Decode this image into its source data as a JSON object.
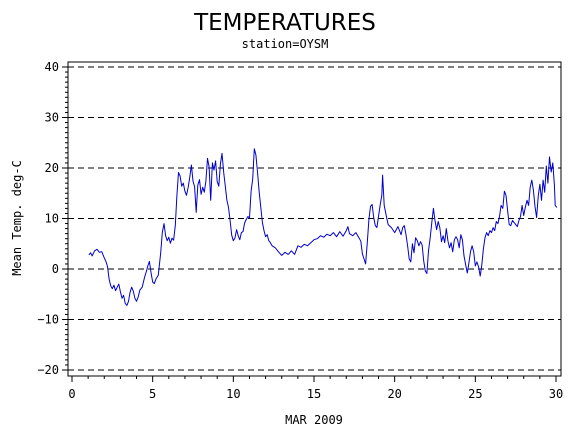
{
  "chart_data": {
    "type": "line",
    "title": "TEMPERATURES",
    "subtitle": "station=OYSM",
    "xlabel": "MAR 2009",
    "ylabel": "Mean Temp. deg-C",
    "xlim": [
      0,
      30
    ],
    "ylim": [
      -20,
      40
    ],
    "x_ticks": [
      0,
      5,
      10,
      15,
      20,
      25,
      30
    ],
    "y_ticks": [
      -20,
      -10,
      0,
      10,
      20,
      30,
      40
    ],
    "grid": "horizontal dashed",
    "series": [
      {
        "color": "#0000cc",
        "points": [
          [
            1.05,
            2.8
          ],
          [
            1.15,
            3.2
          ],
          [
            1.25,
            2.6
          ],
          [
            1.4,
            3.6
          ],
          [
            1.55,
            3.9
          ],
          [
            1.7,
            3.3
          ],
          [
            1.85,
            3.4
          ],
          [
            2.0,
            2.2
          ],
          [
            2.1,
            1.5
          ],
          [
            2.2,
            0.5
          ],
          [
            2.3,
            -2.0
          ],
          [
            2.4,
            -3.3
          ],
          [
            2.5,
            -3.9
          ],
          [
            2.6,
            -3.2
          ],
          [
            2.7,
            -4.3
          ],
          [
            2.8,
            -3.6
          ],
          [
            2.9,
            -3.0
          ],
          [
            3.0,
            -4.5
          ],
          [
            3.1,
            -5.8
          ],
          [
            3.2,
            -5.2
          ],
          [
            3.3,
            -6.8
          ],
          [
            3.4,
            -7.2
          ],
          [
            3.5,
            -6.4
          ],
          [
            3.6,
            -4.6
          ],
          [
            3.7,
            -3.6
          ],
          [
            3.8,
            -4.4
          ],
          [
            3.9,
            -5.8
          ],
          [
            4.0,
            -6.4
          ],
          [
            4.1,
            -5.6
          ],
          [
            4.2,
            -4.2
          ],
          [
            4.35,
            -3.6
          ],
          [
            4.5,
            -1.6
          ],
          [
            4.6,
            -0.6
          ],
          [
            4.7,
            0.6
          ],
          [
            4.8,
            1.5
          ],
          [
            4.9,
            -0.8
          ],
          [
            5.0,
            -2.6
          ],
          [
            5.1,
            -2.9
          ],
          [
            5.2,
            -2.0
          ],
          [
            5.35,
            -1.2
          ],
          [
            5.5,
            3.2
          ],
          [
            5.6,
            7.2
          ],
          [
            5.7,
            9.0
          ],
          [
            5.8,
            6.6
          ],
          [
            5.9,
            5.6
          ],
          [
            6.0,
            6.3
          ],
          [
            6.1,
            5.1
          ],
          [
            6.2,
            6.1
          ],
          [
            6.3,
            5.7
          ],
          [
            6.4,
            8.6
          ],
          [
            6.5,
            14.6
          ],
          [
            6.6,
            19.1
          ],
          [
            6.7,
            18.4
          ],
          [
            6.8,
            16.4
          ],
          [
            6.9,
            17.0
          ],
          [
            7.0,
            15.4
          ],
          [
            7.1,
            14.6
          ],
          [
            7.2,
            16.2
          ],
          [
            7.3,
            18.2
          ],
          [
            7.4,
            20.6
          ],
          [
            7.5,
            17.4
          ],
          [
            7.6,
            16.3
          ],
          [
            7.7,
            11.2
          ],
          [
            7.8,
            16.6
          ],
          [
            7.9,
            17.7
          ],
          [
            8.0,
            14.8
          ],
          [
            8.1,
            16.2
          ],
          [
            8.2,
            15.2
          ],
          [
            8.3,
            17.4
          ],
          [
            8.4,
            21.9
          ],
          [
            8.5,
            20.2
          ],
          [
            8.6,
            13.6
          ],
          [
            8.7,
            21.0
          ],
          [
            8.8,
            19.6
          ],
          [
            8.9,
            21.4
          ],
          [
            9.0,
            17.3
          ],
          [
            9.1,
            16.4
          ],
          [
            9.2,
            20.8
          ],
          [
            9.3,
            22.9
          ],
          [
            9.4,
            19.1
          ],
          [
            9.5,
            16.4
          ],
          [
            9.6,
            13.6
          ],
          [
            9.7,
            12.2
          ],
          [
            9.8,
            9.6
          ],
          [
            9.9,
            6.7
          ],
          [
            10.0,
            5.6
          ],
          [
            10.1,
            6.1
          ],
          [
            10.2,
            7.8
          ],
          [
            10.3,
            6.6
          ],
          [
            10.4,
            5.8
          ],
          [
            10.5,
            7.2
          ],
          [
            10.6,
            7.4
          ],
          [
            10.7,
            9.1
          ],
          [
            10.8,
            9.8
          ],
          [
            10.9,
            10.4
          ],
          [
            11.0,
            10.1
          ],
          [
            11.1,
            15.4
          ],
          [
            11.2,
            17.8
          ],
          [
            11.3,
            23.8
          ],
          [
            11.4,
            22.6
          ],
          [
            11.5,
            19.2
          ],
          [
            11.6,
            15.4
          ],
          [
            11.7,
            12.2
          ],
          [
            11.8,
            9.2
          ],
          [
            11.9,
            7.6
          ],
          [
            12.0,
            6.4
          ],
          [
            12.1,
            6.8
          ],
          [
            12.2,
            5.6
          ],
          [
            12.3,
            5.2
          ],
          [
            12.4,
            4.6
          ],
          [
            12.6,
            4.2
          ],
          [
            12.8,
            3.4
          ],
          [
            13.0,
            2.7
          ],
          [
            13.2,
            3.3
          ],
          [
            13.4,
            2.9
          ],
          [
            13.6,
            3.6
          ],
          [
            13.8,
            2.9
          ],
          [
            14.0,
            4.6
          ],
          [
            14.2,
            4.3
          ],
          [
            14.4,
            4.9
          ],
          [
            14.6,
            4.6
          ],
          [
            14.8,
            5.2
          ],
          [
            15.0,
            5.8
          ],
          [
            15.2,
            6.0
          ],
          [
            15.4,
            6.6
          ],
          [
            15.6,
            6.3
          ],
          [
            15.8,
            6.9
          ],
          [
            16.0,
            6.6
          ],
          [
            16.2,
            7.2
          ],
          [
            16.4,
            6.4
          ],
          [
            16.6,
            7.4
          ],
          [
            16.8,
            6.5
          ],
          [
            17.0,
            7.6
          ],
          [
            17.1,
            8.4
          ],
          [
            17.2,
            7.0
          ],
          [
            17.4,
            6.6
          ],
          [
            17.6,
            7.2
          ],
          [
            17.8,
            6.1
          ],
          [
            17.9,
            5.5
          ],
          [
            18.0,
            3.0
          ],
          [
            18.1,
            2.0
          ],
          [
            18.2,
            1.0
          ],
          [
            18.3,
            5.0
          ],
          [
            18.4,
            9.8
          ],
          [
            18.5,
            12.4
          ],
          [
            18.6,
            12.8
          ],
          [
            18.7,
            10.2
          ],
          [
            18.8,
            8.6
          ],
          [
            18.9,
            8.2
          ],
          [
            19.0,
            10.4
          ],
          [
            19.1,
            12.6
          ],
          [
            19.2,
            14.6
          ],
          [
            19.25,
            18.6
          ],
          [
            19.35,
            12.6
          ],
          [
            19.5,
            10.2
          ],
          [
            19.6,
            8.8
          ],
          [
            19.8,
            8.2
          ],
          [
            20.0,
            7.2
          ],
          [
            20.2,
            8.4
          ],
          [
            20.4,
            6.8
          ],
          [
            20.5,
            8.2
          ],
          [
            20.6,
            8.6
          ],
          [
            20.7,
            6.8
          ],
          [
            20.8,
            4.6
          ],
          [
            20.9,
            2.0
          ],
          [
            21.0,
            1.4
          ],
          [
            21.1,
            5.0
          ],
          [
            21.2,
            3.2
          ],
          [
            21.3,
            6.2
          ],
          [
            21.4,
            5.6
          ],
          [
            21.5,
            4.6
          ],
          [
            21.6,
            5.4
          ],
          [
            21.7,
            4.8
          ],
          [
            21.8,
            1.6
          ],
          [
            21.9,
            -0.4
          ],
          [
            22.0,
            -0.9
          ],
          [
            22.1,
            3.6
          ],
          [
            22.2,
            6.2
          ],
          [
            22.3,
            9.2
          ],
          [
            22.4,
            12.0
          ],
          [
            22.5,
            9.6
          ],
          [
            22.6,
            7.8
          ],
          [
            22.7,
            9.4
          ],
          [
            22.8,
            8.2
          ],
          [
            22.9,
            5.4
          ],
          [
            23.0,
            6.6
          ],
          [
            23.1,
            5.2
          ],
          [
            23.2,
            8.0
          ],
          [
            23.3,
            5.6
          ],
          [
            23.4,
            4.2
          ],
          [
            23.5,
            5.2
          ],
          [
            23.6,
            3.4
          ],
          [
            23.7,
            5.8
          ],
          [
            23.8,
            6.4
          ],
          [
            23.9,
            5.8
          ],
          [
            24.0,
            4.2
          ],
          [
            24.1,
            6.8
          ],
          [
            24.2,
            5.8
          ],
          [
            24.3,
            2.6
          ],
          [
            24.4,
            0.8
          ],
          [
            24.5,
            -0.8
          ],
          [
            24.6,
            1.2
          ],
          [
            24.7,
            3.4
          ],
          [
            24.8,
            4.6
          ],
          [
            24.9,
            3.4
          ],
          [
            25.0,
            0.6
          ],
          [
            25.1,
            1.4
          ],
          [
            25.2,
            0.4
          ],
          [
            25.3,
            -1.4
          ],
          [
            25.4,
            0.8
          ],
          [
            25.5,
            4.0
          ],
          [
            25.6,
            6.2
          ],
          [
            25.7,
            7.2
          ],
          [
            25.8,
            6.6
          ],
          [
            25.9,
            7.6
          ],
          [
            26.0,
            7.2
          ],
          [
            26.1,
            8.2
          ],
          [
            26.2,
            7.6
          ],
          [
            26.3,
            9.4
          ],
          [
            26.4,
            9.0
          ],
          [
            26.5,
            10.4
          ],
          [
            26.6,
            12.6
          ],
          [
            26.7,
            12.0
          ],
          [
            26.8,
            15.4
          ],
          [
            26.9,
            14.6
          ],
          [
            27.0,
            11.6
          ],
          [
            27.1,
            8.8
          ],
          [
            27.2,
            8.6
          ],
          [
            27.3,
            9.6
          ],
          [
            27.4,
            9.2
          ],
          [
            27.5,
            8.8
          ],
          [
            27.6,
            8.4
          ],
          [
            27.7,
            9.6
          ],
          [
            27.8,
            10.4
          ],
          [
            27.9,
            12.6
          ],
          [
            28.0,
            10.6
          ],
          [
            28.1,
            12.2
          ],
          [
            28.2,
            13.6
          ],
          [
            28.3,
            12.6
          ],
          [
            28.4,
            16.2
          ],
          [
            28.5,
            17.6
          ],
          [
            28.6,
            15.6
          ],
          [
            28.7,
            12.4
          ],
          [
            28.8,
            10.2
          ],
          [
            28.9,
            14.6
          ],
          [
            29.0,
            16.8
          ],
          [
            29.1,
            13.6
          ],
          [
            29.2,
            17.6
          ],
          [
            29.3,
            15.2
          ],
          [
            29.4,
            20.4
          ],
          [
            29.5,
            17.0
          ],
          [
            29.6,
            22.2
          ],
          [
            29.7,
            19.2
          ],
          [
            29.8,
            21.0
          ],
          [
            29.9,
            16.6
          ],
          [
            29.95,
            12.6
          ],
          [
            30.05,
            12.2
          ]
        ]
      }
    ]
  }
}
